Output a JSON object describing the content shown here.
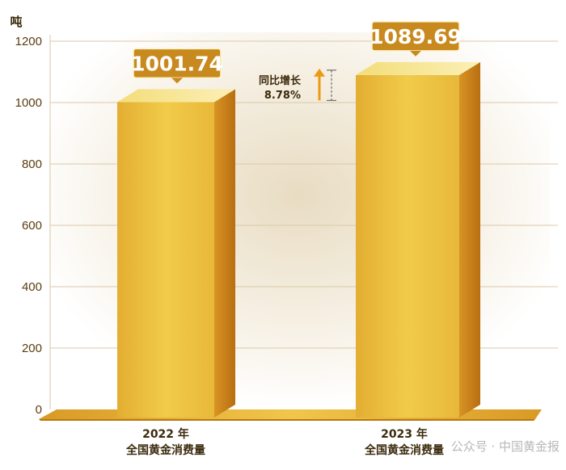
{
  "chart_data": {
    "type": "bar",
    "unit": "吨",
    "categories": [
      "2022 年",
      "2023 年"
    ],
    "category_sublabel": "全国黄金消费量",
    "values": [
      1001.74,
      1089.69
    ],
    "value_labels": [
      "1001.74",
      "1089.69"
    ],
    "ylim": [
      0,
      1200
    ],
    "yticks": [
      0,
      200,
      400,
      600,
      800,
      1000,
      1200
    ],
    "grid": true,
    "annotation": {
      "line1": "同比增长",
      "line2": "8.78%"
    },
    "colors": {
      "bar": "#ecc23f",
      "bar_side": "#cf8a1c",
      "label_bg": "#c88a1e",
      "arrow": "#ec9a13"
    }
  },
  "watermark": {
    "text": "公众号 · 中国黄金报"
  }
}
